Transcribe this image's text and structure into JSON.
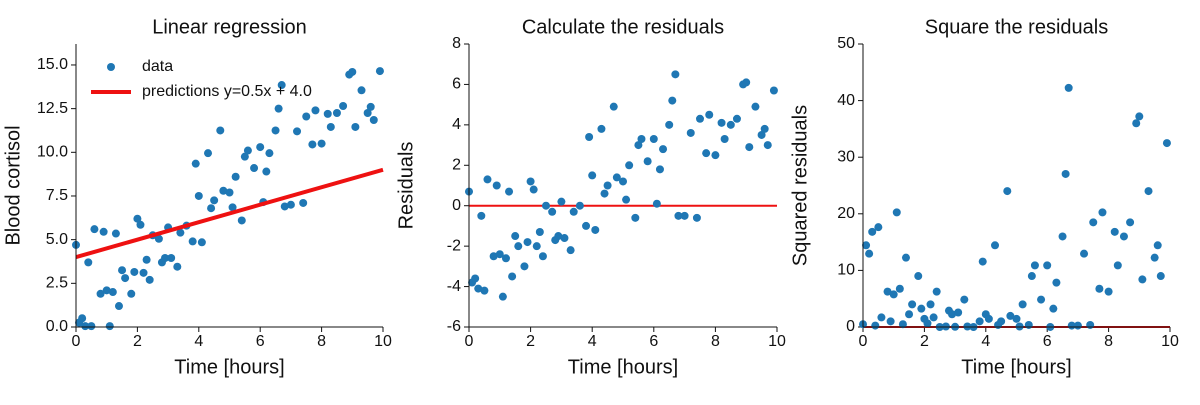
{
  "chart_data": [
    {
      "type": "scatter",
      "title": "Linear regression",
      "x_label": "Time [hours]",
      "y_label": "Blood cortisol",
      "xlim": [
        0,
        10
      ],
      "xticks": [
        0,
        2,
        4,
        6,
        8,
        10
      ],
      "ylim": [
        0,
        16.2
      ],
      "yticks": [
        {
          "value": 0,
          "label": "0.0"
        },
        {
          "value": 2.5,
          "label": "2.5"
        },
        {
          "value": 5,
          "label": "5.0"
        },
        {
          "value": 7.5,
          "label": "7.5"
        },
        {
          "value": 10,
          "label": "10.0"
        },
        {
          "value": 12.5,
          "label": "12.5"
        },
        {
          "value": 15,
          "label": "15.0"
        }
      ],
      "legend": "upper left",
      "series": [
        {
          "name": "data",
          "type": "scatter",
          "color": "#1f77b4",
          "x": [
            0,
            0.1,
            0.2,
            0.3,
            0.4,
            0.5,
            0.6,
            0.8,
            0.9,
            1.0,
            1.1,
            1.2,
            1.3,
            1.4,
            1.5,
            1.6,
            1.8,
            1.9,
            2.0,
            2.1,
            2.2,
            2.3,
            2.4,
            2.5,
            2.7,
            2.8,
            2.9,
            3.0,
            3.1,
            3.3,
            3.4,
            3.6,
            3.8,
            3.9,
            4.0,
            4.1,
            4.3,
            4.4,
            4.5,
            4.7,
            4.8,
            5.0,
            5.1,
            5.2,
            5.4,
            5.5,
            5.6,
            5.8,
            6.0,
            6.1,
            6.2,
            6.3,
            6.5,
            6.6,
            6.7,
            6.8,
            7.0,
            7.2,
            7.4,
            7.5,
            7.7,
            7.8,
            8.0,
            8.2,
            8.3,
            8.5,
            8.7,
            8.9,
            9.0,
            9.1,
            9.3,
            9.5,
            9.6,
            9.7,
            9.9
          ],
          "values": [
            4.7,
            0.25,
            0.5,
            0.05,
            3.7,
            0.05,
            5.6,
            1.9,
            5.45,
            2.1,
            0.05,
            2.0,
            5.35,
            1.2,
            3.25,
            2.8,
            1.9,
            3.15,
            6.2,
            5.85,
            3.1,
            3.85,
            2.7,
            5.25,
            5.05,
            3.7,
            3.95,
            5.7,
            3.95,
            3.45,
            5.4,
            5.8,
            4.9,
            9.35,
            7.5,
            4.85,
            9.95,
            6.8,
            7.25,
            11.25,
            7.8,
            7.7,
            6.85,
            8.6,
            6.1,
            9.75,
            10.1,
            9.1,
            10.3,
            7.15,
            8.9,
            9.95,
            11.25,
            12.5,
            13.85,
            6.9,
            7.0,
            11.2,
            7.1,
            12.05,
            10.45,
            12.4,
            10.5,
            12.2,
            11.45,
            12.25,
            12.65,
            14.45,
            14.6,
            11.45,
            13.55,
            12.25,
            12.6,
            11.85,
            14.65
          ]
        },
        {
          "name": "predictions y=0.5x + 4.0",
          "type": "line",
          "color": "#ee1111",
          "x": [
            0,
            10
          ],
          "values": [
            4,
            9
          ]
        }
      ]
    },
    {
      "type": "scatter",
      "title": "Calculate the residuals",
      "x_label": "Time [hours]",
      "y_label": "Residuals",
      "xlim": [
        0,
        10
      ],
      "xticks": [
        0,
        2,
        4,
        6,
        8,
        10
      ],
      "ylim": [
        -6,
        8
      ],
      "yticks": [
        -6,
        -4,
        -2,
        0,
        2,
        4,
        6,
        8
      ],
      "hline": 0,
      "hline_color": "#ee1111",
      "series": [
        {
          "type": "scatter",
          "color": "#1f77b4",
          "x": [
            0,
            0.1,
            0.2,
            0.3,
            0.4,
            0.5,
            0.6,
            0.8,
            0.9,
            1.0,
            1.1,
            1.2,
            1.3,
            1.4,
            1.5,
            1.6,
            1.8,
            1.9,
            2.0,
            2.1,
            2.2,
            2.3,
            2.4,
            2.5,
            2.7,
            2.8,
            2.9,
            3.0,
            3.1,
            3.3,
            3.4,
            3.6,
            3.8,
            3.9,
            4.0,
            4.1,
            4.3,
            4.4,
            4.5,
            4.7,
            4.8,
            5.0,
            5.1,
            5.2,
            5.4,
            5.5,
            5.6,
            5.8,
            6.0,
            6.1,
            6.2,
            6.3,
            6.5,
            6.6,
            6.7,
            6.8,
            7.0,
            7.2,
            7.4,
            7.5,
            7.7,
            7.8,
            8.0,
            8.2,
            8.3,
            8.5,
            8.7,
            8.9,
            9.0,
            9.1,
            9.3,
            9.5,
            9.6,
            9.7,
            9.9
          ],
          "values": [
            0.7,
            -3.8,
            -3.6,
            -4.1,
            -0.5,
            -4.2,
            1.3,
            -2.5,
            1.0,
            -2.4,
            -4.5,
            -2.6,
            0.7,
            -3.5,
            -1.5,
            -2.0,
            -3.0,
            -1.8,
            1.2,
            0.8,
            -2.0,
            -1.3,
            -2.5,
            0.0,
            -0.3,
            -1.7,
            -1.5,
            0.2,
            -1.6,
            -2.2,
            -0.3,
            0.0,
            -1.0,
            3.4,
            1.5,
            -1.2,
            3.8,
            0.6,
            1.0,
            4.9,
            1.4,
            1.2,
            0.3,
            2.0,
            -0.6,
            3.0,
            3.3,
            2.2,
            3.3,
            0.1,
            1.8,
            2.8,
            4.0,
            5.2,
            6.5,
            -0.5,
            -0.5,
            3.6,
            -0.6,
            4.3,
            2.6,
            4.5,
            2.5,
            4.1,
            3.3,
            4.0,
            4.3,
            6.0,
            6.1,
            2.9,
            4.9,
            3.5,
            3.8,
            3.0,
            5.7
          ]
        }
      ]
    },
    {
      "type": "scatter",
      "title": "Square the residuals",
      "x_label": "Time [hours]",
      "y_label": "Squared residuals",
      "xlim": [
        0,
        10
      ],
      "xticks": [
        0,
        2,
        4,
        6,
        8,
        10
      ],
      "ylim": [
        0,
        50
      ],
      "yticks": [
        0,
        10,
        20,
        30,
        40,
        50
      ],
      "hline": 0,
      "hline_color": "#ee1111",
      "series": [
        {
          "type": "scatter",
          "color": "#1f77b4",
          "x": [
            0,
            0.1,
            0.2,
            0.3,
            0.4,
            0.5,
            0.6,
            0.8,
            0.9,
            1.0,
            1.1,
            1.2,
            1.3,
            1.4,
            1.5,
            1.6,
            1.8,
            1.9,
            2.0,
            2.1,
            2.2,
            2.3,
            2.4,
            2.5,
            2.7,
            2.8,
            2.9,
            3.0,
            3.1,
            3.3,
            3.4,
            3.6,
            3.8,
            3.9,
            4.0,
            4.1,
            4.3,
            4.4,
            4.5,
            4.7,
            4.8,
            5.0,
            5.1,
            5.2,
            5.4,
            5.5,
            5.6,
            5.8,
            6.0,
            6.1,
            6.2,
            6.3,
            6.5,
            6.6,
            6.7,
            6.8,
            7.0,
            7.2,
            7.4,
            7.5,
            7.7,
            7.8,
            8.0,
            8.2,
            8.3,
            8.5,
            8.7,
            8.9,
            9.0,
            9.1,
            9.3,
            9.5,
            9.6,
            9.7,
            9.9
          ],
          "values": [
            0.49,
            14.44,
            12.96,
            16.81,
            0.25,
            17.64,
            1.69,
            6.25,
            1,
            5.76,
            20.25,
            6.76,
            0.49,
            12.25,
            2.25,
            4,
            9,
            3.24,
            1.44,
            0.64,
            4,
            1.69,
            6.25,
            0,
            0.09,
            2.89,
            2.25,
            0.04,
            2.56,
            4.84,
            0.09,
            0,
            1,
            11.56,
            2.25,
            1.44,
            14.44,
            0.36,
            1,
            24.01,
            1.96,
            1.44,
            0.09,
            4,
            0.36,
            9,
            10.89,
            4.84,
            10.89,
            0.01,
            3.24,
            7.84,
            16,
            27.04,
            42.25,
            0.25,
            0.25,
            12.96,
            0.36,
            18.49,
            6.76,
            20.25,
            6.25,
            16.81,
            10.89,
            16,
            18.49,
            36,
            37.21,
            8.41,
            24.01,
            12.25,
            14.44,
            9,
            32.49
          ]
        }
      ]
    }
  ]
}
